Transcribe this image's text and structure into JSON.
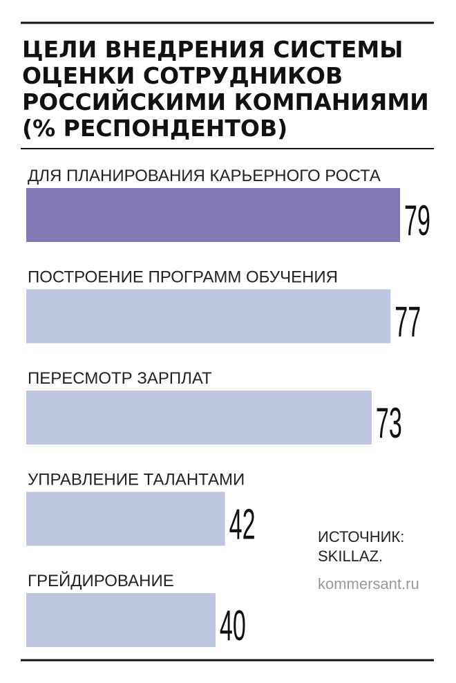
{
  "chart_data": {
    "type": "hbar",
    "title": [
      "ЦЕЛИ ВНЕДРЕНИЯ СИСТЕМЫ",
      "ОЦЕНКИ СОТРУДНИКОВ",
      "РОССИЙСКИМИ КОМПАНИЯМИ",
      "(% РЕСПОНДЕНТОВ)"
    ],
    "categories": [
      "ДЛЯ ПЛАНИРОВАНИЯ КАРЬЕРНОГО РОСТА",
      "ПОСТРОЕНИЕ ПРОГРАММ ОБУЧЕНИЯ",
      "ПЕРЕСМОТР ЗАРПЛАТ",
      "УПРАВЛЕНИЕ ТАЛАНТАМИ",
      "ГРЕЙДИРОВАНИЕ"
    ],
    "values": [
      79,
      77,
      73,
      42,
      40
    ],
    "colors": [
      "#8079b3",
      "#bec5e1",
      "#bec5e1",
      "#bec5e1",
      "#bec5e1"
    ],
    "source": [
      "ИСТОЧНИК:",
      "SKILLAZ."
    ],
    "site": "kommersant.ru"
  }
}
